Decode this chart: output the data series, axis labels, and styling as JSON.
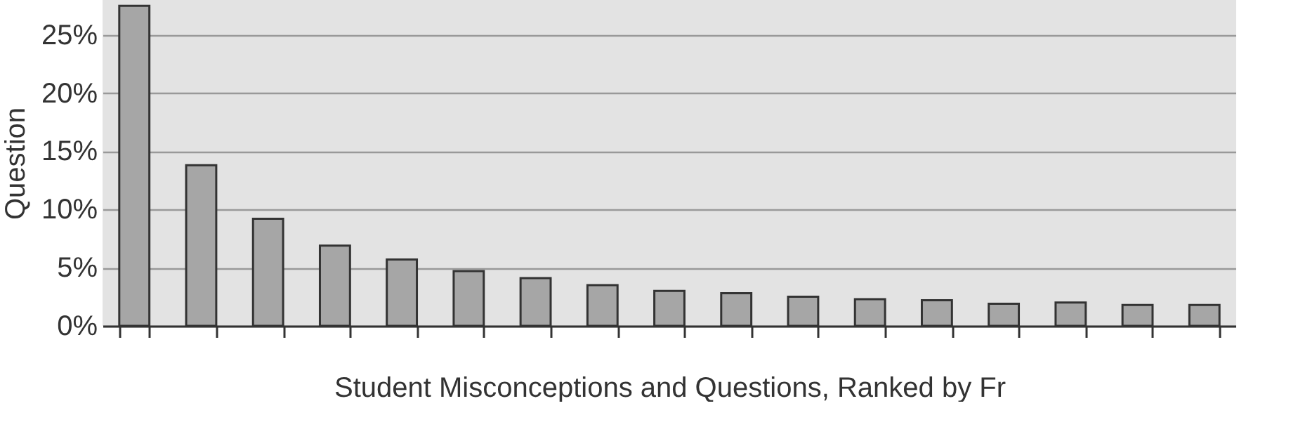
{
  "chart_data": {
    "type": "bar",
    "ylabel": "Question",
    "xlabel": "Student Misconceptions and Questions, Ranked by Fr",
    "categories": [
      null,
      null,
      null,
      null,
      null,
      null,
      null,
      null,
      null,
      null,
      null,
      null,
      null,
      null,
      null,
      null,
      null
    ],
    "values": [
      27.5,
      13.8,
      9.2,
      6.9,
      5.7,
      4.7,
      4.1,
      3.5,
      3.0,
      2.8,
      2.5,
      2.3,
      2.2,
      1.9,
      2.0,
      1.8,
      1.8
    ],
    "color": "#a6a6a6",
    "ylim": [
      0,
      28
    ],
    "yticks": [
      {
        "value": 0,
        "label": "0%"
      },
      {
        "value": 5,
        "label": "5%"
      },
      {
        "value": 10,
        "label": "10%"
      },
      {
        "value": 15,
        "label": "15%"
      },
      {
        "value": 20,
        "label": "20%"
      },
      {
        "value": 25,
        "label": "25%"
      }
    ],
    "grid": "y",
    "tick_labels": "y"
  }
}
